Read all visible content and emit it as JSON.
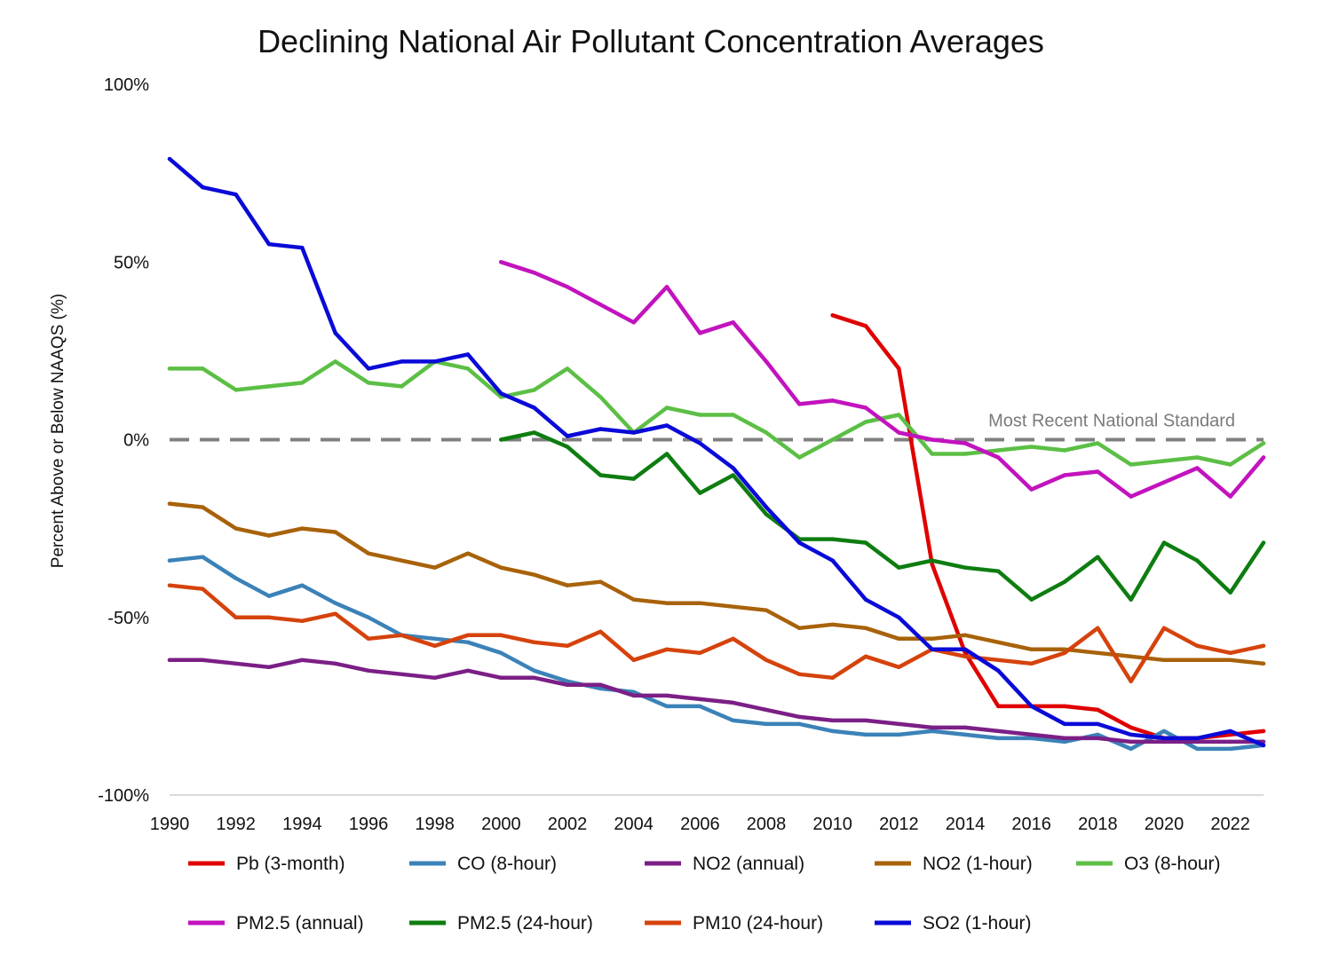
{
  "chart_data": {
    "type": "line",
    "title": "Declining National Air Pollutant Concentration Averages",
    "xlabel": "",
    "ylabel": "Percent Above or Below NAAQS (%)",
    "xlim": [
      1990,
      2023
    ],
    "ylim": [
      -100,
      100
    ],
    "x_ticks": [
      1990,
      1992,
      1994,
      1996,
      1998,
      2000,
      2002,
      2004,
      2006,
      2008,
      2010,
      2012,
      2014,
      2016,
      2018,
      2020,
      2022
    ],
    "y_ticks": [
      {
        "value": 100,
        "label": "100%"
      },
      {
        "value": 50,
        "label": "50%"
      },
      {
        "value": 0,
        "label": "0%"
      },
      {
        "value": -50,
        "label": "-50%"
      },
      {
        "value": -100,
        "label": "-100%"
      }
    ],
    "grid": false,
    "legend_placement": "bottom",
    "reference_line": {
      "value": 0,
      "label": "Most Recent National Standard",
      "color": "#808080",
      "style": "dashed"
    },
    "series": [
      {
        "name": "Pb (3-month)",
        "color": "#e00000",
        "start": 2010,
        "values": [
          35,
          32,
          20,
          -35,
          -60,
          -75,
          -75,
          -75,
          -76,
          -81,
          -84,
          -84,
          -83,
          -82
        ]
      },
      {
        "name": "CO (8-hour)",
        "color": "#3b82b8",
        "start": 1990,
        "values": [
          -34,
          -33,
          -39,
          -44,
          -41,
          -46,
          -50,
          -55,
          -56,
          -57,
          -60,
          -65,
          -68,
          -70,
          -71,
          -75,
          -75,
          -79,
          -80,
          -80,
          -82,
          -83,
          -83,
          -82,
          -83,
          -84,
          -84,
          -85,
          -83,
          -87,
          -82,
          -87,
          -87,
          -86
        ]
      },
      {
        "name": "NO2 (annual)",
        "color": "#7b1f86",
        "start": 1990,
        "values": [
          -62,
          -62,
          -63,
          -64,
          -62,
          -63,
          -65,
          -66,
          -67,
          -65,
          -67,
          -67,
          -69,
          -69,
          -72,
          -72,
          -73,
          -74,
          -76,
          -78,
          -79,
          -79,
          -80,
          -81,
          -81,
          -82,
          -83,
          -84,
          -84,
          -85,
          -85,
          -85,
          -85,
          -85
        ]
      },
      {
        "name": "NO2 (1-hour)",
        "color": "#a8620a",
        "start": 1990,
        "values": [
          -18,
          -19,
          -25,
          -27,
          -25,
          -26,
          -32,
          -34,
          -36,
          -32,
          -36,
          -38,
          -41,
          -40,
          -45,
          -46,
          -46,
          -47,
          -48,
          -53,
          -52,
          -53,
          -56,
          -56,
          -55,
          -57,
          -59,
          -59,
          -60,
          -61,
          -62,
          -62,
          -62,
          -63
        ]
      },
      {
        "name": "O3 (8-hour)",
        "color": "#5cbf45",
        "start": 1990,
        "values": [
          20,
          20,
          14,
          15,
          16,
          22,
          16,
          15,
          22,
          20,
          12,
          14,
          20,
          12,
          2,
          9,
          7,
          7,
          2,
          -5,
          0,
          5,
          7,
          -4,
          -4,
          -3,
          -2,
          -3,
          -1,
          -7,
          -6,
          -5,
          -7,
          -1
        ]
      },
      {
        "name": "PM2.5 (annual)",
        "color": "#c213be",
        "start": 2000,
        "values": [
          50,
          47,
          43,
          38,
          33,
          43,
          30,
          33,
          22,
          10,
          11,
          9,
          2,
          0,
          -1,
          -5,
          -14,
          -10,
          -9,
          -16,
          -12,
          -8,
          -16,
          -5
        ]
      },
      {
        "name": "PM2.5 (24-hour)",
        "color": "#0e7d10",
        "start": 2000,
        "values": [
          0,
          2,
          -2,
          -10,
          -11,
          -4,
          -15,
          -10,
          -21,
          -28,
          -28,
          -29,
          -36,
          -34,
          -36,
          -37,
          -45,
          -40,
          -33,
          -45,
          -29,
          -34,
          -43,
          -29
        ]
      },
      {
        "name": "PM10 (24-hour)",
        "color": "#d5430c",
        "start": 1990,
        "values": [
          -41,
          -42,
          -50,
          -50,
          -51,
          -49,
          -56,
          -55,
          -58,
          -55,
          -55,
          -57,
          -58,
          -54,
          -62,
          -59,
          -60,
          -56,
          -62,
          -66,
          -67,
          -61,
          -64,
          -59,
          -61,
          -62,
          -63,
          -60,
          -53,
          -68,
          -53,
          -58,
          -60,
          -58
        ]
      },
      {
        "name": "SO2 (1-hour)",
        "color": "#0a0ad8",
        "start": 1990,
        "values": [
          79,
          71,
          69,
          55,
          54,
          30,
          20,
          22,
          22,
          24,
          13,
          9,
          1,
          3,
          2,
          4,
          -1,
          -8,
          -19,
          -29,
          -34,
          -45,
          -50,
          -59,
          -59,
          -65,
          -75,
          -80,
          -80,
          -83,
          -84,
          -84,
          -82,
          -86
        ]
      }
    ]
  }
}
